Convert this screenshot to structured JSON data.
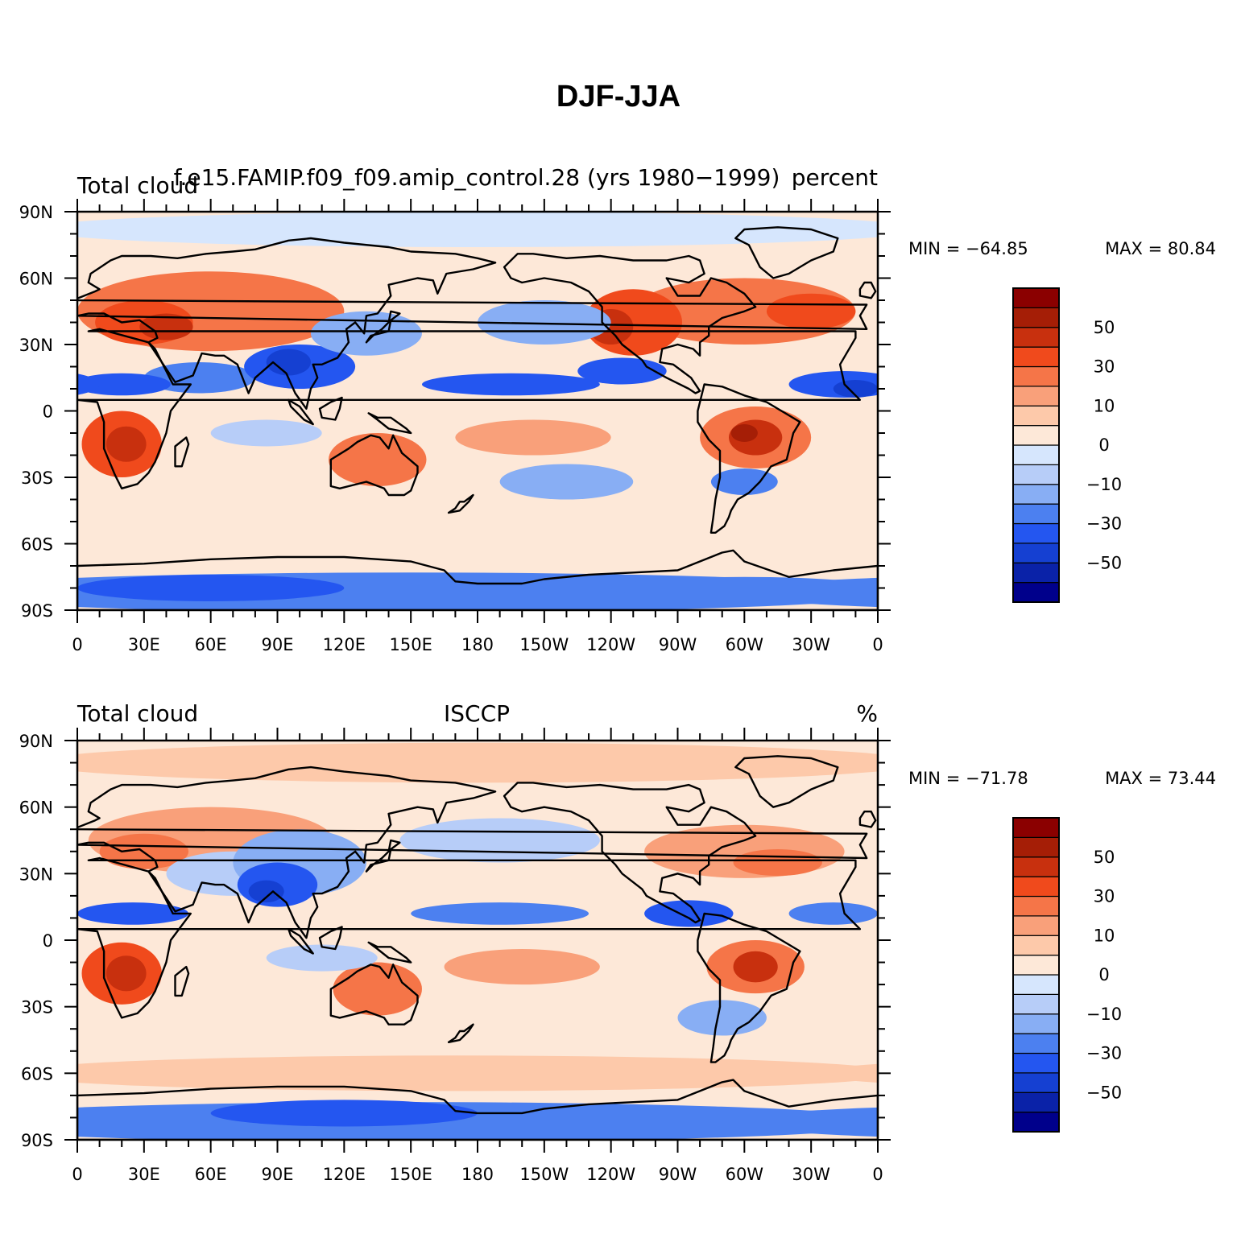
{
  "title": "DJF-JJA",
  "colors": [
    "#00008b",
    "#0a22a8",
    "#1540d2",
    "#2456f0",
    "#4c80f0",
    "#88aef4",
    "#b7cdf8",
    "#d6e6fd",
    "#fde8d8",
    "#fdc9aa",
    "#f9a07a",
    "#f57548",
    "#f04a1c",
    "#c8300e",
    "#a51e06",
    "#8b0000"
  ],
  "chart_data": [
    {
      "type": "heatmap",
      "left_label": "Total cloud",
      "center_label": "f.e15.FAMIP.f09_f09.amip_control.28 (yrs 1980−1999)",
      "right_label": "percent",
      "min_label": "MIN = −64.85",
      "max_label": "MAX =  80.84",
      "min": -64.85,
      "max": 80.84,
      "x_tick_labels": [
        "0",
        "30E",
        "60E",
        "90E",
        "120E",
        "150E",
        "180",
        "150W",
        "120W",
        "90W",
        "60W",
        "30W",
        "0"
      ],
      "y_tick_labels": [
        "90N",
        "60N",
        "30N",
        "0",
        "30S",
        "60S",
        "90S"
      ],
      "colorbar_labels": [
        "50",
        "30",
        "10",
        "0",
        "−10",
        "−30",
        "−50"
      ],
      "colorbar_levels": [
        -70,
        -60,
        -50,
        -40,
        -30,
        -20,
        -10,
        -5,
        0,
        5,
        10,
        20,
        30,
        40,
        50,
        60,
        70
      ],
      "xlim": [
        0,
        360
      ],
      "ylim": [
        -90,
        90
      ]
    },
    {
      "type": "heatmap",
      "left_label": "Total cloud",
      "center_label": "ISCCP",
      "right_label": "%",
      "min_label": "MIN = −71.78",
      "max_label": "MAX =  73.44",
      "min": -71.78,
      "max": 73.44,
      "x_tick_labels": [
        "0",
        "30E",
        "60E",
        "90E",
        "120E",
        "150E",
        "180",
        "150W",
        "120W",
        "90W",
        "60W",
        "30W",
        "0"
      ],
      "y_tick_labels": [
        "90N",
        "60N",
        "30N",
        "0",
        "30S",
        "60S",
        "90S"
      ],
      "colorbar_labels": [
        "50",
        "30",
        "10",
        "0",
        "−10",
        "−30",
        "−50"
      ],
      "colorbar_levels": [
        -70,
        -60,
        -50,
        -40,
        -30,
        -20,
        -10,
        -5,
        0,
        5,
        10,
        20,
        30,
        40,
        50,
        60,
        70
      ],
      "xlim": [
        0,
        360
      ],
      "ylim": [
        -90,
        90
      ]
    }
  ]
}
